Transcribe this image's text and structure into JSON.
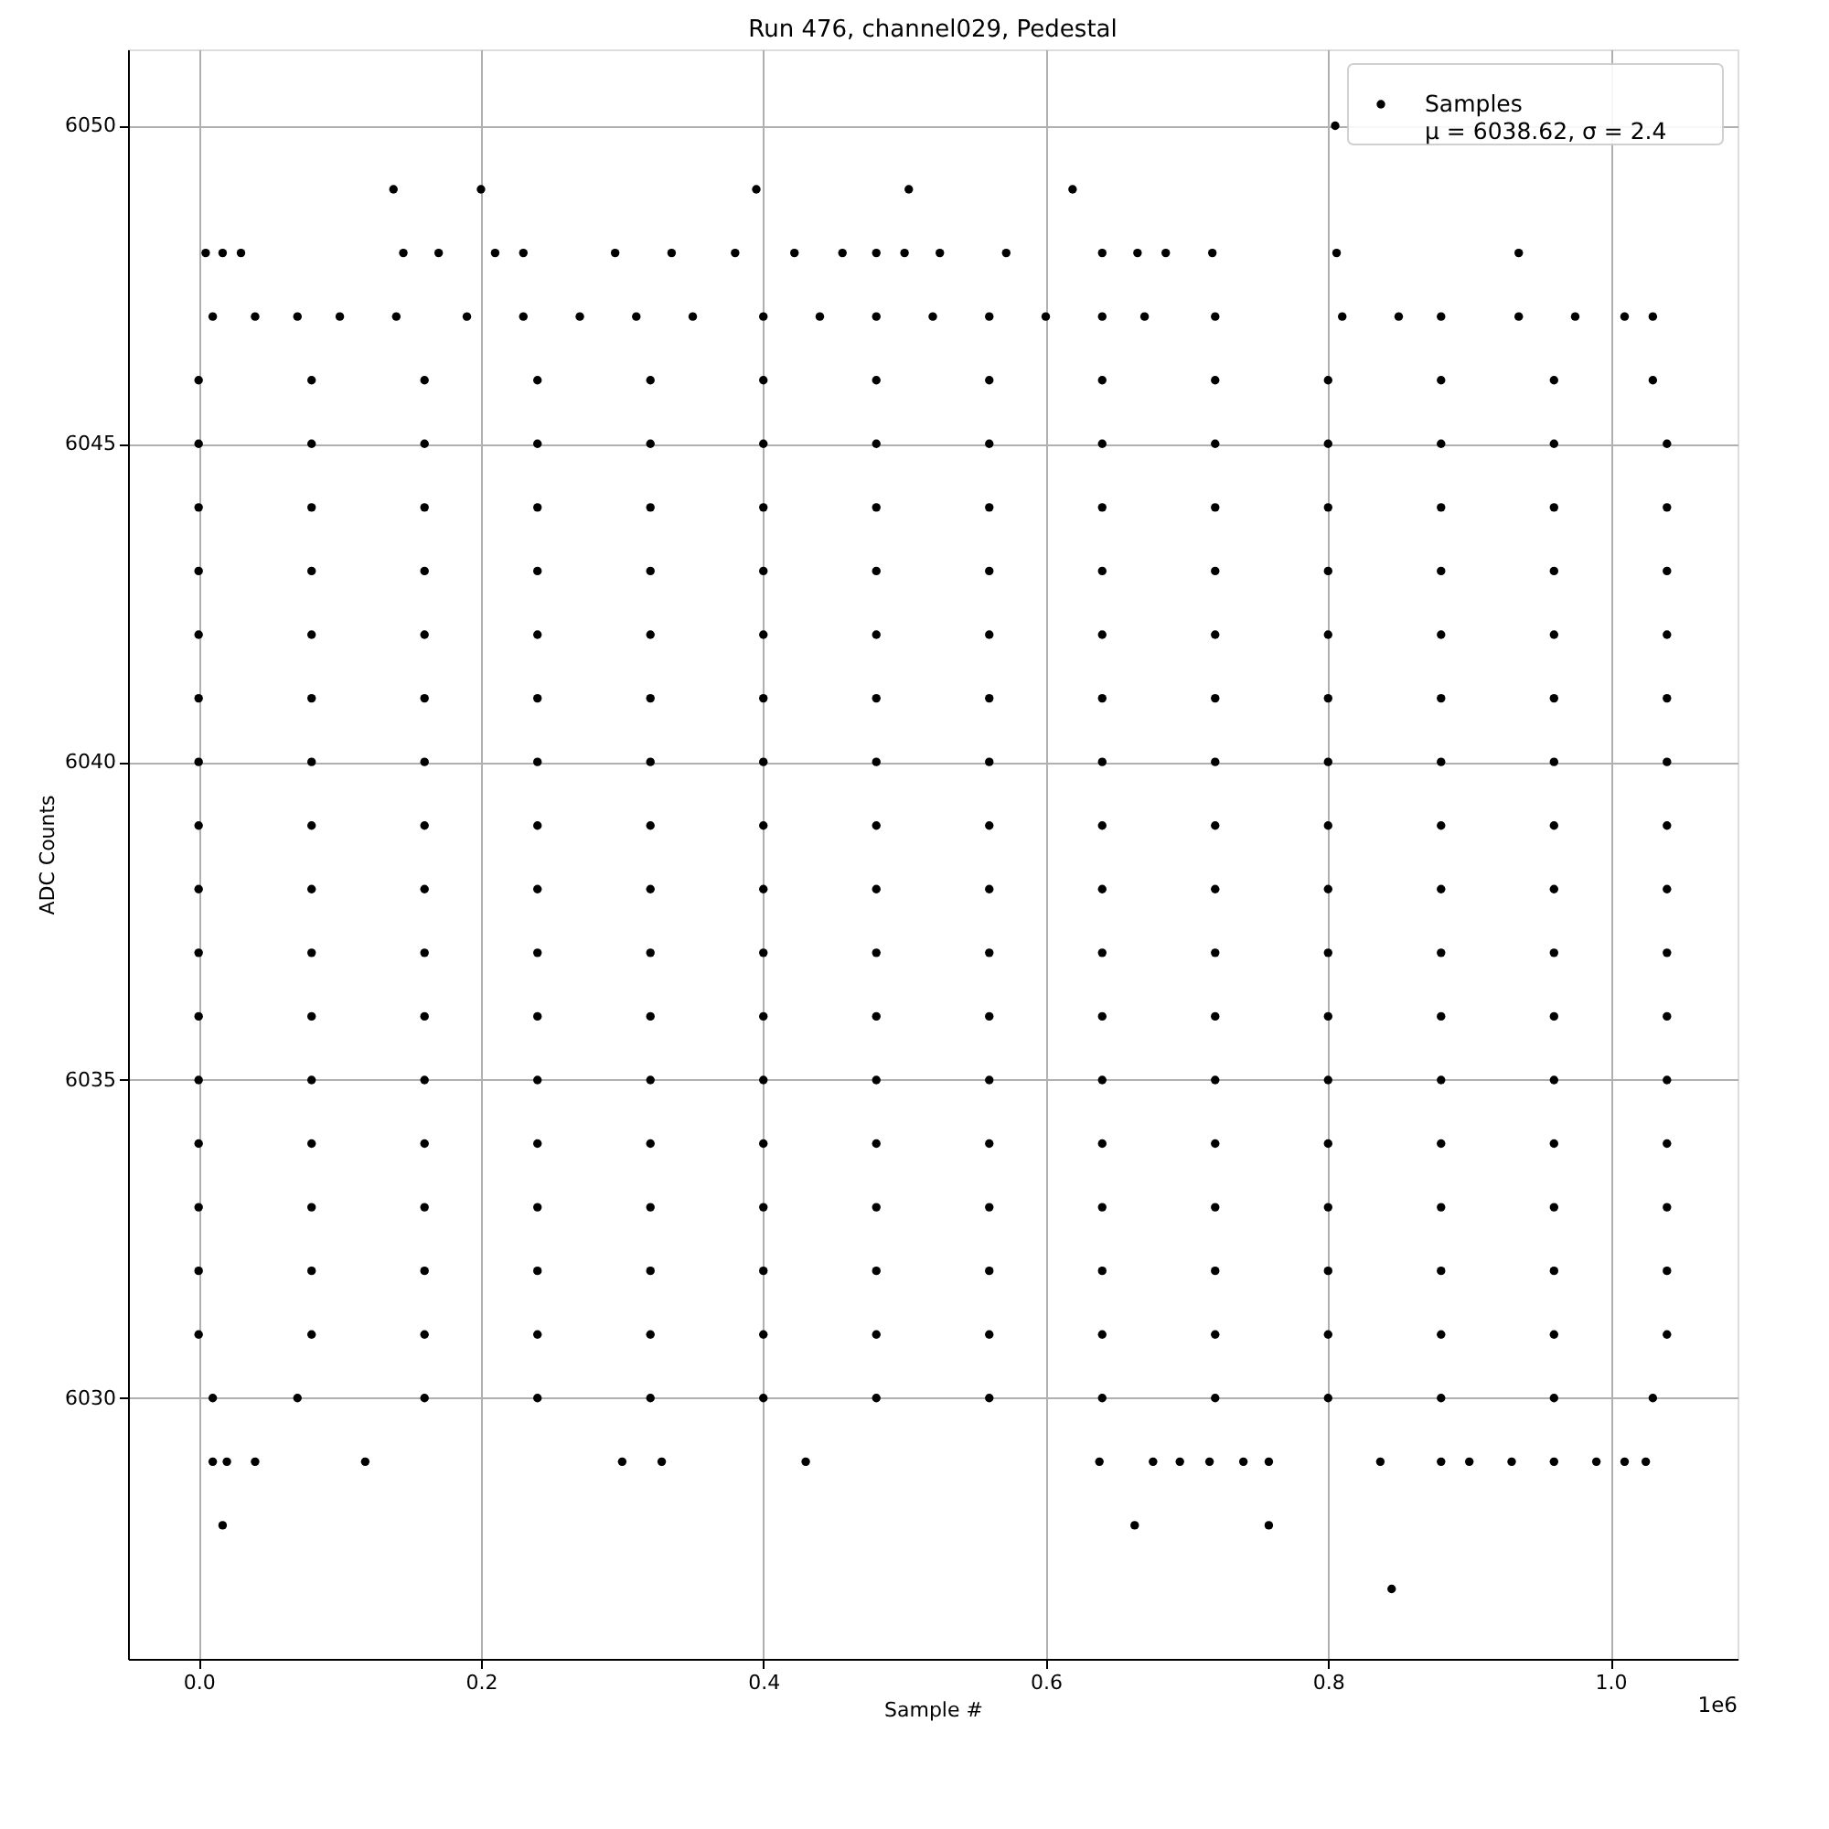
{
  "chart_data": {
    "type": "scatter",
    "title": "Run 476, channel029, Pedestal",
    "xlabel": "Sample #",
    "ylabel": "ADC Counts",
    "xlim": [
      -0.05,
      1.09
    ],
    "ylim": [
      6025.9,
      6051.2
    ],
    "xticks": [
      {
        "value": 0,
        "label": "0.0"
      },
      {
        "value": 0.2,
        "label": "0.2"
      },
      {
        "value": 0.4,
        "label": "0.4"
      },
      {
        "value": 0.6,
        "label": "0.6"
      },
      {
        "value": 0.8,
        "label": "0.8"
      },
      {
        "value": 1,
        "label": "1.0"
      }
    ],
    "yticks": [
      6030,
      6035,
      6040,
      6045,
      6050
    ],
    "grid": true,
    "legend": "top right",
    "marker": "circle",
    "annotations": [
      "1e6"
    ],
    "series": [
      {
        "name": "Samples\nμ = 6038.62, σ = 2.4",
        "color": "#000000",
        "x": [
          0,
          0.08,
          0.16,
          0.24,
          0.32,
          0.4,
          0.48,
          0.56,
          0.64,
          0.72,
          0.8,
          0.88,
          0.96,
          1.04,
          0,
          0.08,
          0.16,
          0.24,
          0.32,
          0.4,
          0.48,
          0.56,
          0.64,
          0.72,
          0.8,
          0.88,
          0.96,
          1.04,
          0,
          0.08,
          0.16,
          0.24,
          0.32,
          0.4,
          0.48,
          0.56,
          0.64,
          0.72,
          0.8,
          0.88,
          0.96,
          1.04,
          0,
          0.08,
          0.16,
          0.24,
          0.32,
          0.4,
          0.48,
          0.56,
          0.64,
          0.72,
          0.8,
          0.88,
          0.96,
          1.04,
          0,
          0.08,
          0.16,
          0.24,
          0.32,
          0.4,
          0.48,
          0.56,
          0.64,
          0.72,
          0.8,
          0.88,
          0.96,
          1.04,
          0,
          0.08,
          0.16,
          0.24,
          0.32,
          0.4,
          0.48,
          0.56,
          0.64,
          0.72,
          0.8,
          0.88,
          0.96,
          1.04,
          0,
          0.08,
          0.16,
          0.24,
          0.32,
          0.4,
          0.48,
          0.56,
          0.64,
          0.72,
          0.8,
          0.88,
          0.96,
          1.04,
          0,
          0.08,
          0.16,
          0.24,
          0.32,
          0.4,
          0.48,
          0.56,
          0.64,
          0.72,
          0.8,
          0.88,
          0.96,
          1.04,
          0,
          0.08,
          0.16,
          0.24,
          0.32,
          0.4,
          0.48,
          0.56,
          0.64,
          0.72,
          0.8,
          0.88,
          0.96,
          1.04,
          0,
          0.08,
          0.16,
          0.24,
          0.32,
          0.4,
          0.48,
          0.56,
          0.64,
          0.72,
          0.8,
          0.88,
          0.96,
          1.04,
          0,
          0.08,
          0.16,
          0.24,
          0.32,
          0.4,
          0.48,
          0.56,
          0.64,
          0.72,
          0.8,
          0.88,
          0.96,
          1.04,
          0,
          0.08,
          0.16,
          0.24,
          0.32,
          0.4,
          0.48,
          0.56,
          0.64,
          0.72,
          0.8,
          0.88,
          0.96,
          1.04,
          0,
          0.08,
          0.16,
          0.24,
          0.32,
          0.4,
          0.48,
          0.56,
          0.64,
          0.72,
          0.8,
          0.88,
          0.96,
          1.04,
          0,
          0.08,
          0.16,
          0.24,
          0.32,
          0.4,
          0.48,
          0.56,
          0.64,
          0.72,
          0.8,
          0.88,
          0.96,
          1.04,
          0,
          0.08,
          0.16,
          0.24,
          0.32,
          0.4,
          0.48,
          0.56,
          0.64,
          0.72,
          0.8,
          0.88,
          0.96,
          1.04,
          0.01,
          0.07,
          0.16,
          0.24,
          0.32,
          0.4,
          0.48,
          0.56,
          0.64,
          0.72,
          0.8,
          0.88,
          0.96,
          1.03,
          0,
          0.08,
          0.16,
          0.24,
          0.32,
          0.4,
          0.48,
          0.56,
          0.64,
          0.72,
          0.8,
          0.88,
          0.96,
          1.03,
          0.01,
          0.04,
          0.07,
          0.1,
          0.14,
          0.19,
          0.23,
          0.27,
          0.31,
          0.35,
          0.4,
          0.44,
          0.48,
          0.52,
          0.56,
          0.6,
          0.64,
          0.67,
          0.72,
          0.81,
          0.85,
          0.88,
          0.935,
          0.975,
          1.01,
          1.03,
          0.005,
          0.017,
          0.03,
          0.145,
          0.17,
          0.21,
          0.23,
          0.295,
          0.335,
          0.38,
          0.422,
          0.456,
          0.48,
          0.5,
          0.525,
          0.572,
          0.64,
          0.665,
          0.685,
          0.718,
          0.806,
          0.935,
          0.138,
          0.2,
          0.395,
          0.503,
          0.619,
          0.805,
          0.01,
          0.02,
          0.04,
          0.118,
          0.3,
          0.328,
          0.43,
          0.638,
          0.676,
          0.695,
          0.716,
          0.74,
          0.758,
          0.837,
          0.88,
          0.9,
          0.93,
          0.96,
          0.99,
          1.01,
          1.025,
          0.017,
          0.663,
          0.758,
          0.845
        ],
        "values": [
          6031,
          6031,
          6031,
          6031,
          6031,
          6031,
          6031,
          6031,
          6031,
          6031,
          6031,
          6031,
          6031,
          6031,
          6032,
          6032,
          6032,
          6032,
          6032,
          6032,
          6032,
          6032,
          6032,
          6032,
          6032,
          6032,
          6032,
          6032,
          6033,
          6033,
          6033,
          6033,
          6033,
          6033,
          6033,
          6033,
          6033,
          6033,
          6033,
          6033,
          6033,
          6033,
          6034,
          6034,
          6034,
          6034,
          6034,
          6034,
          6034,
          6034,
          6034,
          6034,
          6034,
          6034,
          6034,
          6034,
          6035,
          6035,
          6035,
          6035,
          6035,
          6035,
          6035,
          6035,
          6035,
          6035,
          6035,
          6035,
          6035,
          6035,
          6036,
          6036,
          6036,
          6036,
          6036,
          6036,
          6036,
          6036,
          6036,
          6036,
          6036,
          6036,
          6036,
          6036,
          6037,
          6037,
          6037,
          6037,
          6037,
          6037,
          6037,
          6037,
          6037,
          6037,
          6037,
          6037,
          6037,
          6037,
          6038,
          6038,
          6038,
          6038,
          6038,
          6038,
          6038,
          6038,
          6038,
          6038,
          6038,
          6038,
          6038,
          6038,
          6039,
          6039,
          6039,
          6039,
          6039,
          6039,
          6039,
          6039,
          6039,
          6039,
          6039,
          6039,
          6039,
          6039,
          6040,
          6040,
          6040,
          6040,
          6040,
          6040,
          6040,
          6040,
          6040,
          6040,
          6040,
          6040,
          6040,
          6040,
          6041,
          6041,
          6041,
          6041,
          6041,
          6041,
          6041,
          6041,
          6041,
          6041,
          6041,
          6041,
          6041,
          6041,
          6042,
          6042,
          6042,
          6042,
          6042,
          6042,
          6042,
          6042,
          6042,
          6042,
          6042,
          6042,
          6042,
          6042,
          6043,
          6043,
          6043,
          6043,
          6043,
          6043,
          6043,
          6043,
          6043,
          6043,
          6043,
          6043,
          6043,
          6043,
          6044,
          6044,
          6044,
          6044,
          6044,
          6044,
          6044,
          6044,
          6044,
          6044,
          6044,
          6044,
          6044,
          6044,
          6045,
          6045,
          6045,
          6045,
          6045,
          6045,
          6045,
          6045,
          6045,
          6045,
          6045,
          6045,
          6045,
          6045,
          6030,
          6030,
          6030,
          6030,
          6030,
          6030,
          6030,
          6030,
          6030,
          6030,
          6030,
          6030,
          6030,
          6030,
          6046,
          6046,
          6046,
          6046,
          6046,
          6046,
          6046,
          6046,
          6046,
          6046,
          6046,
          6046,
          6046,
          6046,
          6047,
          6047,
          6047,
          6047,
          6047,
          6047,
          6047,
          6047,
          6047,
          6047,
          6047,
          6047,
          6047,
          6047,
          6047,
          6047,
          6047,
          6047,
          6047,
          6047,
          6047,
          6047,
          6047,
          6047,
          6047,
          6047,
          6048,
          6048,
          6048,
          6048,
          6048,
          6048,
          6048,
          6048,
          6048,
          6048,
          6048,
          6048,
          6048,
          6048,
          6048,
          6048,
          6048,
          6048,
          6048,
          6048,
          6048,
          6048,
          6049,
          6049,
          6049,
          6049,
          6049,
          6050,
          6029,
          6029,
          6029,
          6029,
          6029,
          6029,
          6029,
          6029,
          6029,
          6029,
          6029,
          6029,
          6029,
          6029,
          6029,
          6029,
          6029,
          6029,
          6029,
          6029,
          6029,
          6028,
          6028,
          6028,
          6027
        ]
      }
    ]
  }
}
